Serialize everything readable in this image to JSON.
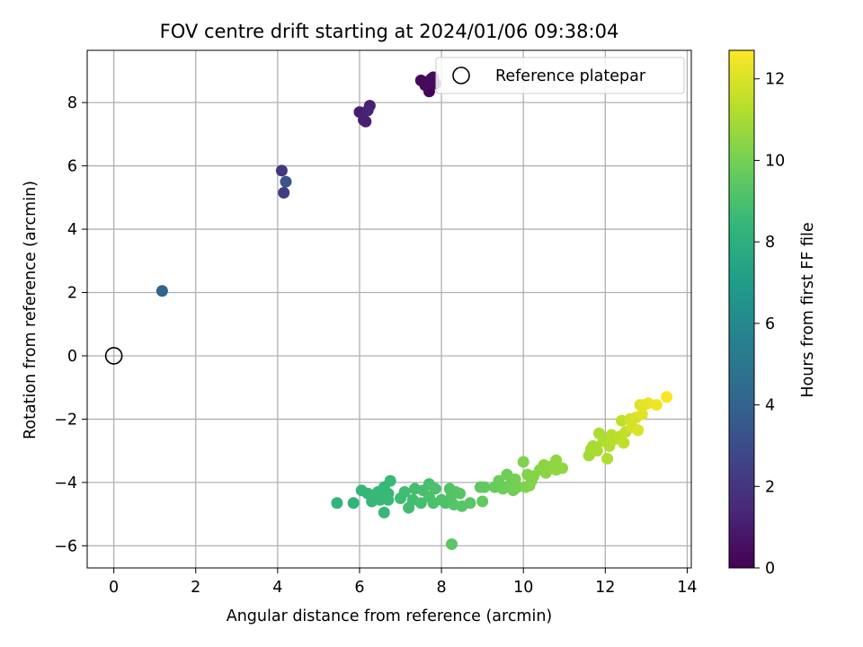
{
  "chart_data": {
    "type": "scatter",
    "title": "FOV centre drift starting at 2024/01/06 09:38:04",
    "xlabel": "Angular distance from reference (arcmin)",
    "ylabel": "Rotation from reference (arcmin)",
    "xlim": [
      -0.65,
      14.1
    ],
    "ylim": [
      -6.7,
      9.65
    ],
    "xticks": [
      0,
      2,
      4,
      6,
      8,
      10,
      12,
      14
    ],
    "yticks": [
      -6,
      -4,
      -2,
      0,
      2,
      4,
      6,
      8
    ],
    "grid": true,
    "legend": {
      "placement": "top-right",
      "entries": [
        "Reference platepar"
      ]
    },
    "reference_point": {
      "x": 0,
      "y": 0
    },
    "colorbar": {
      "label": "Hours from first FF file",
      "range": [
        0,
        12.7
      ],
      "ticks": [
        0,
        2,
        4,
        6,
        8,
        10,
        12
      ],
      "colormap": [
        "#440154",
        "#482878",
        "#3e4989",
        "#31688e",
        "#26828e",
        "#1f9e89",
        "#35b779",
        "#6ece58",
        "#b5de2b",
        "#fde725"
      ]
    },
    "points": [
      [
        7.6,
        8.65,
        0.1
      ],
      [
        7.7,
        8.35,
        0.15
      ],
      [
        7.5,
        8.7,
        0.2
      ],
      [
        7.8,
        8.8,
        0.25
      ],
      [
        7.85,
        8.6,
        0.3
      ],
      [
        7.6,
        8.55,
        0.35
      ],
      [
        7.75,
        8.75,
        0.4
      ],
      [
        6.0,
        7.7,
        1.0
      ],
      [
        6.1,
        7.45,
        1.1
      ],
      [
        6.15,
        7.4,
        1.15
      ],
      [
        6.25,
        7.9,
        1.2
      ],
      [
        6.2,
        7.75,
        1.25
      ],
      [
        4.1,
        5.85,
        2.0
      ],
      [
        4.15,
        5.15,
        2.3
      ],
      [
        4.2,
        5.5,
        3.3
      ],
      [
        1.18,
        2.05,
        4.1
      ],
      [
        5.45,
        -4.65,
        8.3
      ],
      [
        5.85,
        -4.65,
        8.35
      ],
      [
        6.05,
        -4.25,
        8.4
      ],
      [
        6.2,
        -4.35,
        8.4
      ],
      [
        6.3,
        -4.6,
        8.45
      ],
      [
        6.35,
        -4.4,
        8.45
      ],
      [
        6.45,
        -4.3,
        8.5
      ],
      [
        6.5,
        -4.55,
        8.5
      ],
      [
        6.6,
        -4.15,
        8.5
      ],
      [
        6.6,
        -4.95,
        8.55
      ],
      [
        6.7,
        -4.35,
        8.55
      ],
      [
        6.75,
        -3.95,
        8.55
      ],
      [
        6.7,
        -4.55,
        8.6
      ],
      [
        7.0,
        -4.5,
        8.7
      ],
      [
        7.1,
        -4.3,
        8.75
      ],
      [
        7.2,
        -4.8,
        8.8
      ],
      [
        7.3,
        -4.55,
        8.8
      ],
      [
        7.35,
        -4.2,
        8.85
      ],
      [
        7.5,
        -4.65,
        8.9
      ],
      [
        7.55,
        -4.25,
        8.9
      ],
      [
        7.7,
        -4.05,
        8.95
      ],
      [
        7.7,
        -4.45,
        9.0
      ],
      [
        7.8,
        -4.65,
        9.0
      ],
      [
        7.85,
        -4.2,
        9.0
      ],
      [
        8.0,
        -4.55,
        9.1
      ],
      [
        8.1,
        -4.65,
        9.1
      ],
      [
        8.2,
        -4.2,
        9.2
      ],
      [
        8.25,
        -4.4,
        9.2
      ],
      [
        8.3,
        -4.7,
        9.25
      ],
      [
        8.35,
        -4.3,
        9.25
      ],
      [
        8.45,
        -4.35,
        9.3
      ],
      [
        8.5,
        -4.75,
        9.3
      ],
      [
        8.7,
        -4.65,
        9.35
      ],
      [
        8.25,
        -5.95,
        9.4
      ],
      [
        8.95,
        -4.15,
        9.5
      ],
      [
        9.0,
        -4.6,
        9.55
      ],
      [
        9.05,
        -4.15,
        9.6
      ],
      [
        9.3,
        -4.15,
        9.7
      ],
      [
        9.4,
        -3.95,
        9.75
      ],
      [
        9.5,
        -4.2,
        9.8
      ],
      [
        9.6,
        -3.75,
        9.85
      ],
      [
        9.65,
        -4.1,
        9.9
      ],
      [
        9.75,
        -4.25,
        9.95
      ],
      [
        9.8,
        -3.9,
        10.0
      ],
      [
        9.85,
        -4.15,
        10.0
      ],
      [
        10.0,
        -3.35,
        10.2
      ],
      [
        10.05,
        -4.15,
        10.2
      ],
      [
        10.1,
        -3.75,
        10.25
      ],
      [
        10.15,
        -4.1,
        10.25
      ],
      [
        10.2,
        -3.95,
        10.3
      ],
      [
        10.25,
        -3.8,
        10.35
      ],
      [
        10.4,
        -3.6,
        10.4
      ],
      [
        10.5,
        -3.45,
        10.45
      ],
      [
        10.55,
        -3.7,
        10.45
      ],
      [
        10.65,
        -3.5,
        10.5
      ],
      [
        10.8,
        -3.3,
        10.55
      ],
      [
        10.8,
        -3.6,
        10.6
      ],
      [
        10.95,
        -3.55,
        10.6
      ],
      [
        11.6,
        -3.15,
        10.9
      ],
      [
        11.65,
        -2.95,
        10.95
      ],
      [
        11.7,
        -2.85,
        11.0
      ],
      [
        11.8,
        -3.0,
        11.05
      ],
      [
        11.85,
        -2.45,
        11.1
      ],
      [
        11.95,
        -2.7,
        11.15
      ],
      [
        12.05,
        -3.25,
        11.2
      ],
      [
        12.1,
        -2.85,
        11.25
      ],
      [
        12.15,
        -2.5,
        11.3
      ],
      [
        12.2,
        -2.65,
        11.35
      ],
      [
        12.35,
        -2.55,
        11.4
      ],
      [
        12.4,
        -2.05,
        11.45
      ],
      [
        12.45,
        -2.75,
        11.5
      ],
      [
        12.5,
        -2.4,
        11.55
      ],
      [
        12.6,
        -2.0,
        11.8
      ],
      [
        12.65,
        -2.25,
        11.85
      ],
      [
        12.75,
        -1.95,
        11.95
      ],
      [
        12.8,
        -2.35,
        12.0
      ],
      [
        12.85,
        -1.55,
        12.1
      ],
      [
        12.9,
        -1.85,
        12.15
      ],
      [
        12.95,
        -1.55,
        12.2
      ],
      [
        13.05,
        -1.5,
        12.3
      ],
      [
        13.25,
        -1.55,
        12.4
      ],
      [
        13.5,
        -1.3,
        12.6
      ]
    ]
  }
}
